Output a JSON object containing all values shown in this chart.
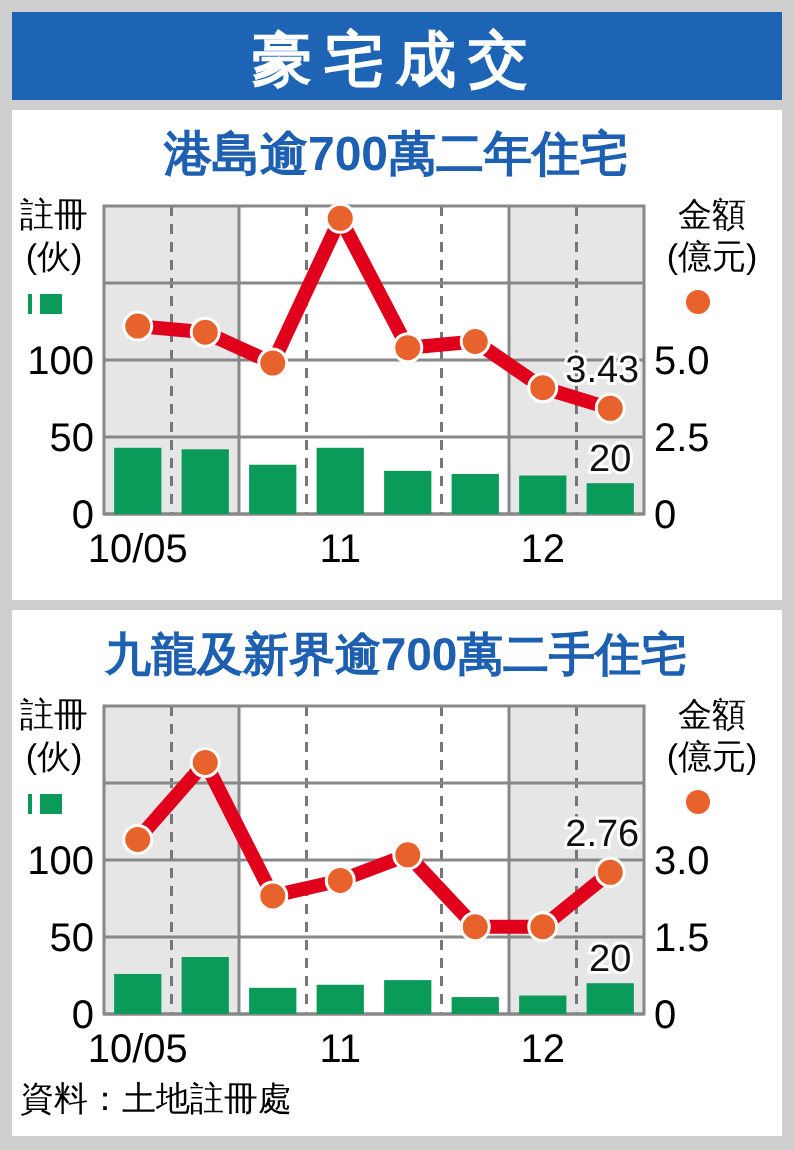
{
  "chart_data": [
    {
      "type": "bar",
      "title": "豪宅成交",
      "subtitle": "港島逾700萬二年住宅",
      "ylabel": "註冊(伙)",
      "y2label": "金額(億元)",
      "categories": [
        "10/05",
        null,
        null,
        "11",
        null,
        null,
        "12",
        null
      ],
      "ylim": [
        0,
        200
      ],
      "yticks": [
        0,
        50,
        100,
        {
          "value": 150,
          "label": null
        }
      ],
      "y2lim": [
        0,
        10
      ],
      "y2ticks": [
        0,
        2.5,
        {
          "value": 5,
          "label": "5.0"
        }
      ],
      "grid": true,
      "marker": "circle",
      "series": [
        {
          "color": "#0a9a5a",
          "values": [
            43,
            42,
            32,
            43,
            28,
            26,
            25,
            20
          ],
          "value_labels": [
            null,
            null,
            null,
            null,
            null,
            null,
            null,
            "20"
          ]
        },
        {
          "type": "line",
          "axis": "y2",
          "color": "#e0001b",
          "values": [
            6.1,
            5.9,
            4.9,
            9.6,
            5.4,
            5.6,
            4.1,
            3.43
          ],
          "value_labels": [
            null,
            null,
            null,
            null,
            null,
            null,
            null,
            "3.43"
          ]
        }
      ]
    },
    {
      "type": "bar",
      "title": "九龍及新界逾700萬二手住宅",
      "ylabel": "註冊(伙)",
      "y2label": "金額(億元)",
      "categories": [
        "10/05",
        null,
        null,
        "11",
        null,
        null,
        "12",
        null
      ],
      "ylim": [
        0,
        200
      ],
      "yticks": [
        0,
        50,
        100,
        {
          "value": 150,
          "label": null
        }
      ],
      "y2lim": [
        0,
        6
      ],
      "y2ticks": [
        0,
        1.5,
        {
          "value": 3,
          "label": "3.0"
        }
      ],
      "grid": true,
      "marker": "circle",
      "annotations": [
        "資料：土地註冊處"
      ],
      "series": [
        {
          "color": "#0a9a5a",
          "values": [
            26,
            37,
            17,
            19,
            22,
            11,
            12,
            20
          ],
          "value_labels": [
            null,
            null,
            null,
            null,
            null,
            null,
            null,
            "20"
          ]
        },
        {
          "type": "line",
          "axis": "y2",
          "color": "#e0001b",
          "values": [
            3.4,
            4.9,
            2.3,
            2.6,
            3.1,
            1.7,
            1.7,
            2.76
          ],
          "value_labels": [
            null,
            null,
            null,
            null,
            null,
            null,
            null,
            "2.76"
          ]
        }
      ]
    }
  ]
}
